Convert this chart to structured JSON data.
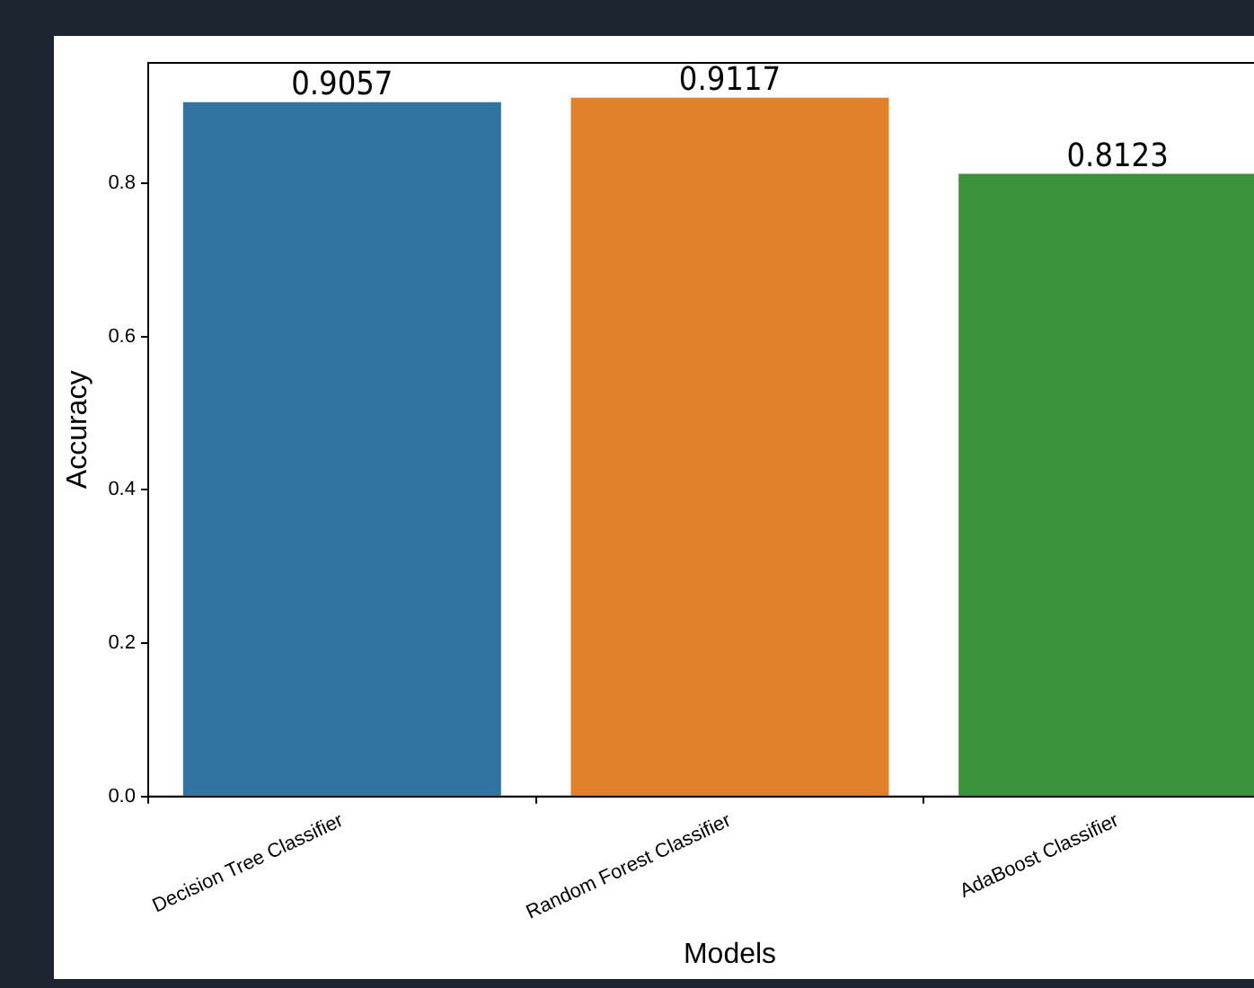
{
  "chart_data": {
    "type": "bar",
    "xlabel": "Models",
    "ylabel": "Accuracy",
    "categories": [
      "Decision Tree Classifier",
      "Random Forest Classifier",
      "AdaBoost Classifier"
    ],
    "values": [
      0.9057,
      0.9117,
      0.8123
    ],
    "colors": [
      "#3274a1",
      "#e1812c",
      "#3a923a"
    ],
    "ylim": [
      0,
      0.957
    ],
    "yticks": [
      {
        "value": 0,
        "label": "0.0"
      },
      {
        "value": 0.2,
        "label": "0.2"
      },
      {
        "value": 0.4,
        "label": "0.4"
      },
      {
        "value": 0.6,
        "label": "0.6"
      },
      {
        "value": 0.8,
        "label": "0.8"
      }
    ],
    "data_labels": true,
    "grid": false,
    "legend": false
  }
}
